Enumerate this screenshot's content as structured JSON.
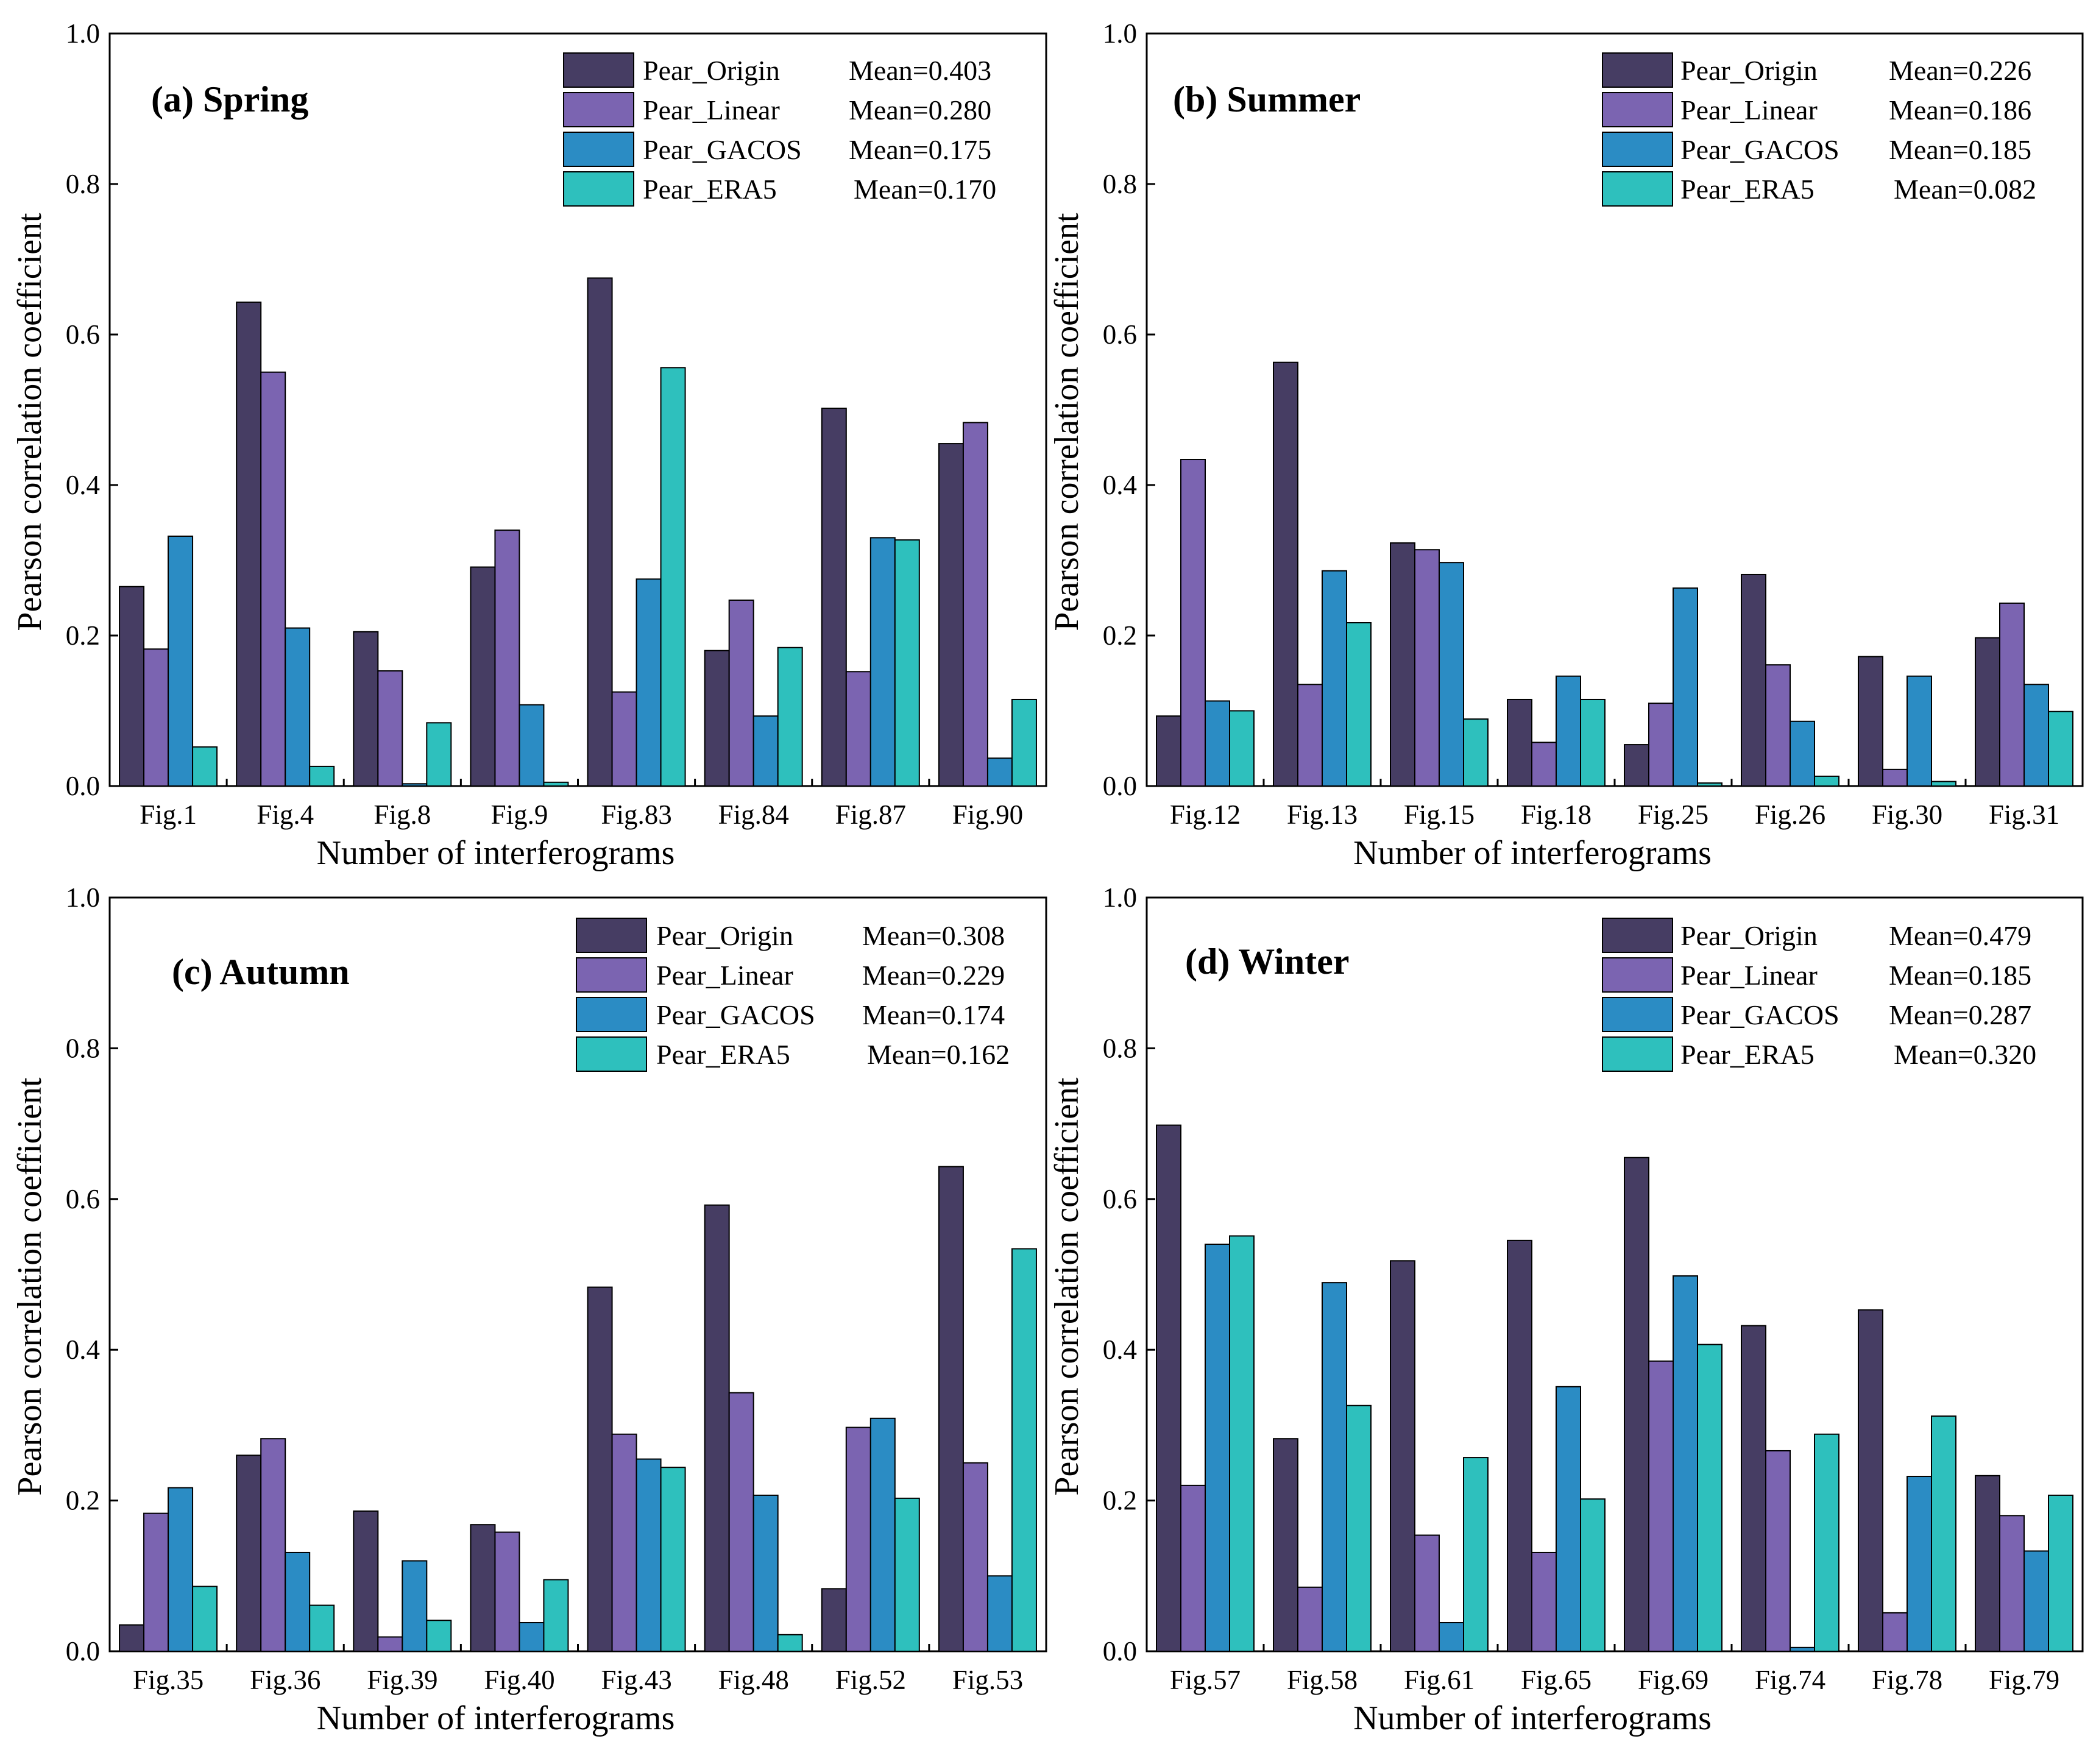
{
  "colors": {
    "Pear_Origin": "#463D63",
    "Pear_Linear": "#7B64B1",
    "Pear_GACOS": "#2B8CC4",
    "Pear_ERA5": "#2EC0BD"
  },
  "chart_data": [
    {
      "type": "bar",
      "title": "(a) Spring",
      "xlabel": "Number of interferograms",
      "ylabel": "Pearson correlation coefficient",
      "ylim": [
        0,
        1.0
      ],
      "yticks": [
        "0.0",
        "0.2",
        "0.4",
        "0.6",
        "0.8",
        "1.0"
      ],
      "categories": [
        "Fig.1",
        "Fig.4",
        "Fig.8",
        "Fig.9",
        "Fig.83",
        "Fig.84",
        "Fig.87",
        "Fig.90"
      ],
      "legend": {
        "placement": "top-right"
      },
      "series": [
        {
          "name": "Pear_Origin",
          "mean_label": "Mean=0.403",
          "values": [
            0.265,
            0.643,
            0.205,
            0.291,
            0.675,
            0.18,
            0.502,
            0.455
          ]
        },
        {
          "name": "Pear_Linear",
          "mean_label": "Mean=0.280",
          "values": [
            0.182,
            0.55,
            0.153,
            0.34,
            0.125,
            0.247,
            0.152,
            0.483
          ]
        },
        {
          "name": "Pear_GACOS",
          "mean_label": "Mean=0.175",
          "values": [
            0.332,
            0.21,
            0.003,
            0.108,
            0.275,
            0.093,
            0.33,
            0.037
          ]
        },
        {
          "name": "Pear_ERA5",
          "mean_label": "Mean=0.170",
          "values": [
            0.052,
            0.026,
            0.084,
            0.005,
            0.556,
            0.184,
            0.327,
            0.115
          ]
        }
      ]
    },
    {
      "type": "bar",
      "title": "(b) Summer",
      "xlabel": "Number of interferograms",
      "ylabel": "Pearson correlation coefficient",
      "ylim": [
        0,
        1.0
      ],
      "yticks": [
        "0.0",
        "0.2",
        "0.4",
        "0.6",
        "0.8",
        "1.0"
      ],
      "categories": [
        "Fig.12",
        "Fig.13",
        "Fig.15",
        "Fig.18",
        "Fig.25",
        "Fig.26",
        "Fig.30",
        "Fig.31"
      ],
      "legend": {
        "placement": "top-right"
      },
      "series": [
        {
          "name": "Pear_Origin",
          "mean_label": "Mean=0.226",
          "values": [
            0.093,
            0.563,
            0.323,
            0.115,
            0.055,
            0.281,
            0.172,
            0.197
          ]
        },
        {
          "name": "Pear_Linear",
          "mean_label": "Mean=0.186",
          "values": [
            0.434,
            0.135,
            0.314,
            0.058,
            0.11,
            0.161,
            0.022,
            0.243
          ]
        },
        {
          "name": "Pear_GACOS",
          "mean_label": "Mean=0.185",
          "values": [
            0.113,
            0.286,
            0.297,
            0.146,
            0.263,
            0.086,
            0.146,
            0.135
          ]
        },
        {
          "name": "Pear_ERA5",
          "mean_label": "Mean=0.082",
          "values": [
            0.1,
            0.217,
            0.089,
            0.115,
            0.004,
            0.013,
            0.006,
            0.099
          ]
        }
      ]
    },
    {
      "type": "bar",
      "title": "(c) Autumn",
      "xlabel": "Number of interferograms",
      "ylabel": "Pearson correlation coefficient",
      "ylim": [
        0,
        1.0
      ],
      "yticks": [
        "0.0",
        "0.2",
        "0.4",
        "0.6",
        "0.8",
        "1.0"
      ],
      "categories": [
        "Fig.35",
        "Fig.36",
        "Fig.39",
        "Fig.40",
        "Fig.43",
        "Fig.48",
        "Fig.52",
        "Fig.53"
      ],
      "legend": {
        "placement": "top-right"
      },
      "series": [
        {
          "name": "Pear_Origin",
          "mean_label": "Mean=0.308",
          "values": [
            0.035,
            0.26,
            0.186,
            0.168,
            0.483,
            0.592,
            0.083,
            0.643
          ]
        },
        {
          "name": "Pear_Linear",
          "mean_label": "Mean=0.229",
          "values": [
            0.183,
            0.282,
            0.019,
            0.158,
            0.288,
            0.343,
            0.297,
            0.25
          ]
        },
        {
          "name": "Pear_GACOS",
          "mean_label": "Mean=0.174",
          "values": [
            0.217,
            0.131,
            0.12,
            0.038,
            0.255,
            0.207,
            0.309,
            0.1
          ]
        },
        {
          "name": "Pear_ERA5",
          "mean_label": "Mean=0.162",
          "values": [
            0.086,
            0.061,
            0.041,
            0.095,
            0.244,
            0.022,
            0.203,
            0.534
          ]
        }
      ]
    },
    {
      "type": "bar",
      "title": "(d) Winter",
      "xlabel": "Number of interferograms",
      "ylabel": "Pearson correlation coefficient",
      "ylim": [
        0,
        1.0
      ],
      "yticks": [
        "0.0",
        "0.2",
        "0.4",
        "0.6",
        "0.8",
        "1.0"
      ],
      "categories": [
        "Fig.57",
        "Fig.58",
        "Fig.61",
        "Fig.65",
        "Fig.69",
        "Fig.74",
        "Fig.78",
        "Fig.79"
      ],
      "legend": {
        "placement": "top-right"
      },
      "series": [
        {
          "name": "Pear_Origin",
          "mean_label": "Mean=0.479",
          "values": [
            0.698,
            0.282,
            0.518,
            0.545,
            0.655,
            0.432,
            0.453,
            0.233
          ]
        },
        {
          "name": "Pear_Linear",
          "mean_label": "Mean=0.185",
          "values": [
            0.22,
            0.085,
            0.154,
            0.131,
            0.385,
            0.266,
            0.051,
            0.18
          ]
        },
        {
          "name": "Pear_GACOS",
          "mean_label": "Mean=0.287",
          "values": [
            0.54,
            0.489,
            0.038,
            0.351,
            0.498,
            0.005,
            0.232,
            0.133
          ]
        },
        {
          "name": "Pear_ERA5",
          "mean_label": "Mean=0.320",
          "values": [
            0.551,
            0.326,
            0.257,
            0.202,
            0.407,
            0.288,
            0.312,
            0.207
          ]
        }
      ]
    }
  ]
}
